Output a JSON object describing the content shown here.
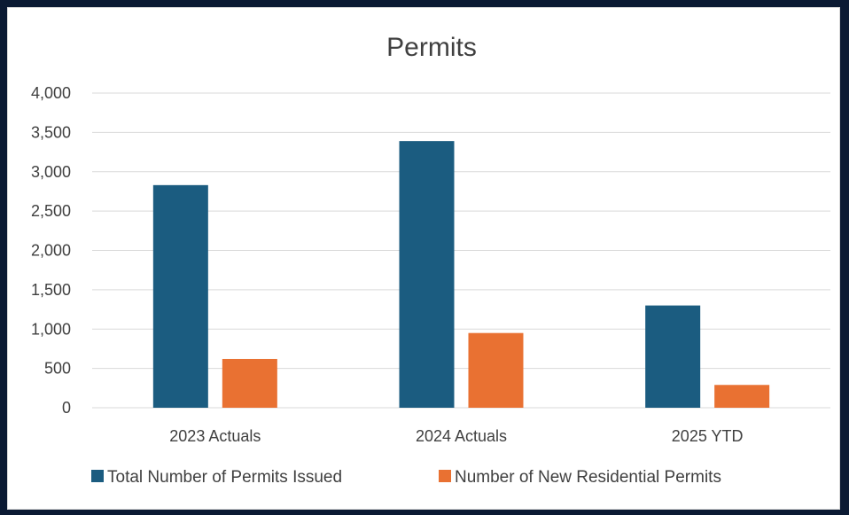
{
  "chart_data": {
    "type": "bar",
    "title": "Permits",
    "categories": [
      "2023 Actuals",
      "2024 Actuals",
      "2025 YTD"
    ],
    "series": [
      {
        "name": "Total Number of Permits Issued",
        "values": [
          2830,
          3390,
          1300
        ],
        "color": "#1b5c80"
      },
      {
        "name": "Number of New Residential Permits",
        "values": [
          620,
          950,
          290
        ],
        "color": "#e97132"
      }
    ],
    "ylim": [
      0,
      4000
    ],
    "yticks": [
      0,
      500,
      1000,
      1500,
      2000,
      2500,
      3000,
      3500,
      4000
    ],
    "ytick_labels": [
      "0",
      "500",
      "1,000",
      "1,500",
      "2,000",
      "2,500",
      "3,000",
      "3,500",
      "4,000"
    ],
    "grid": true,
    "legend": "bottom"
  }
}
